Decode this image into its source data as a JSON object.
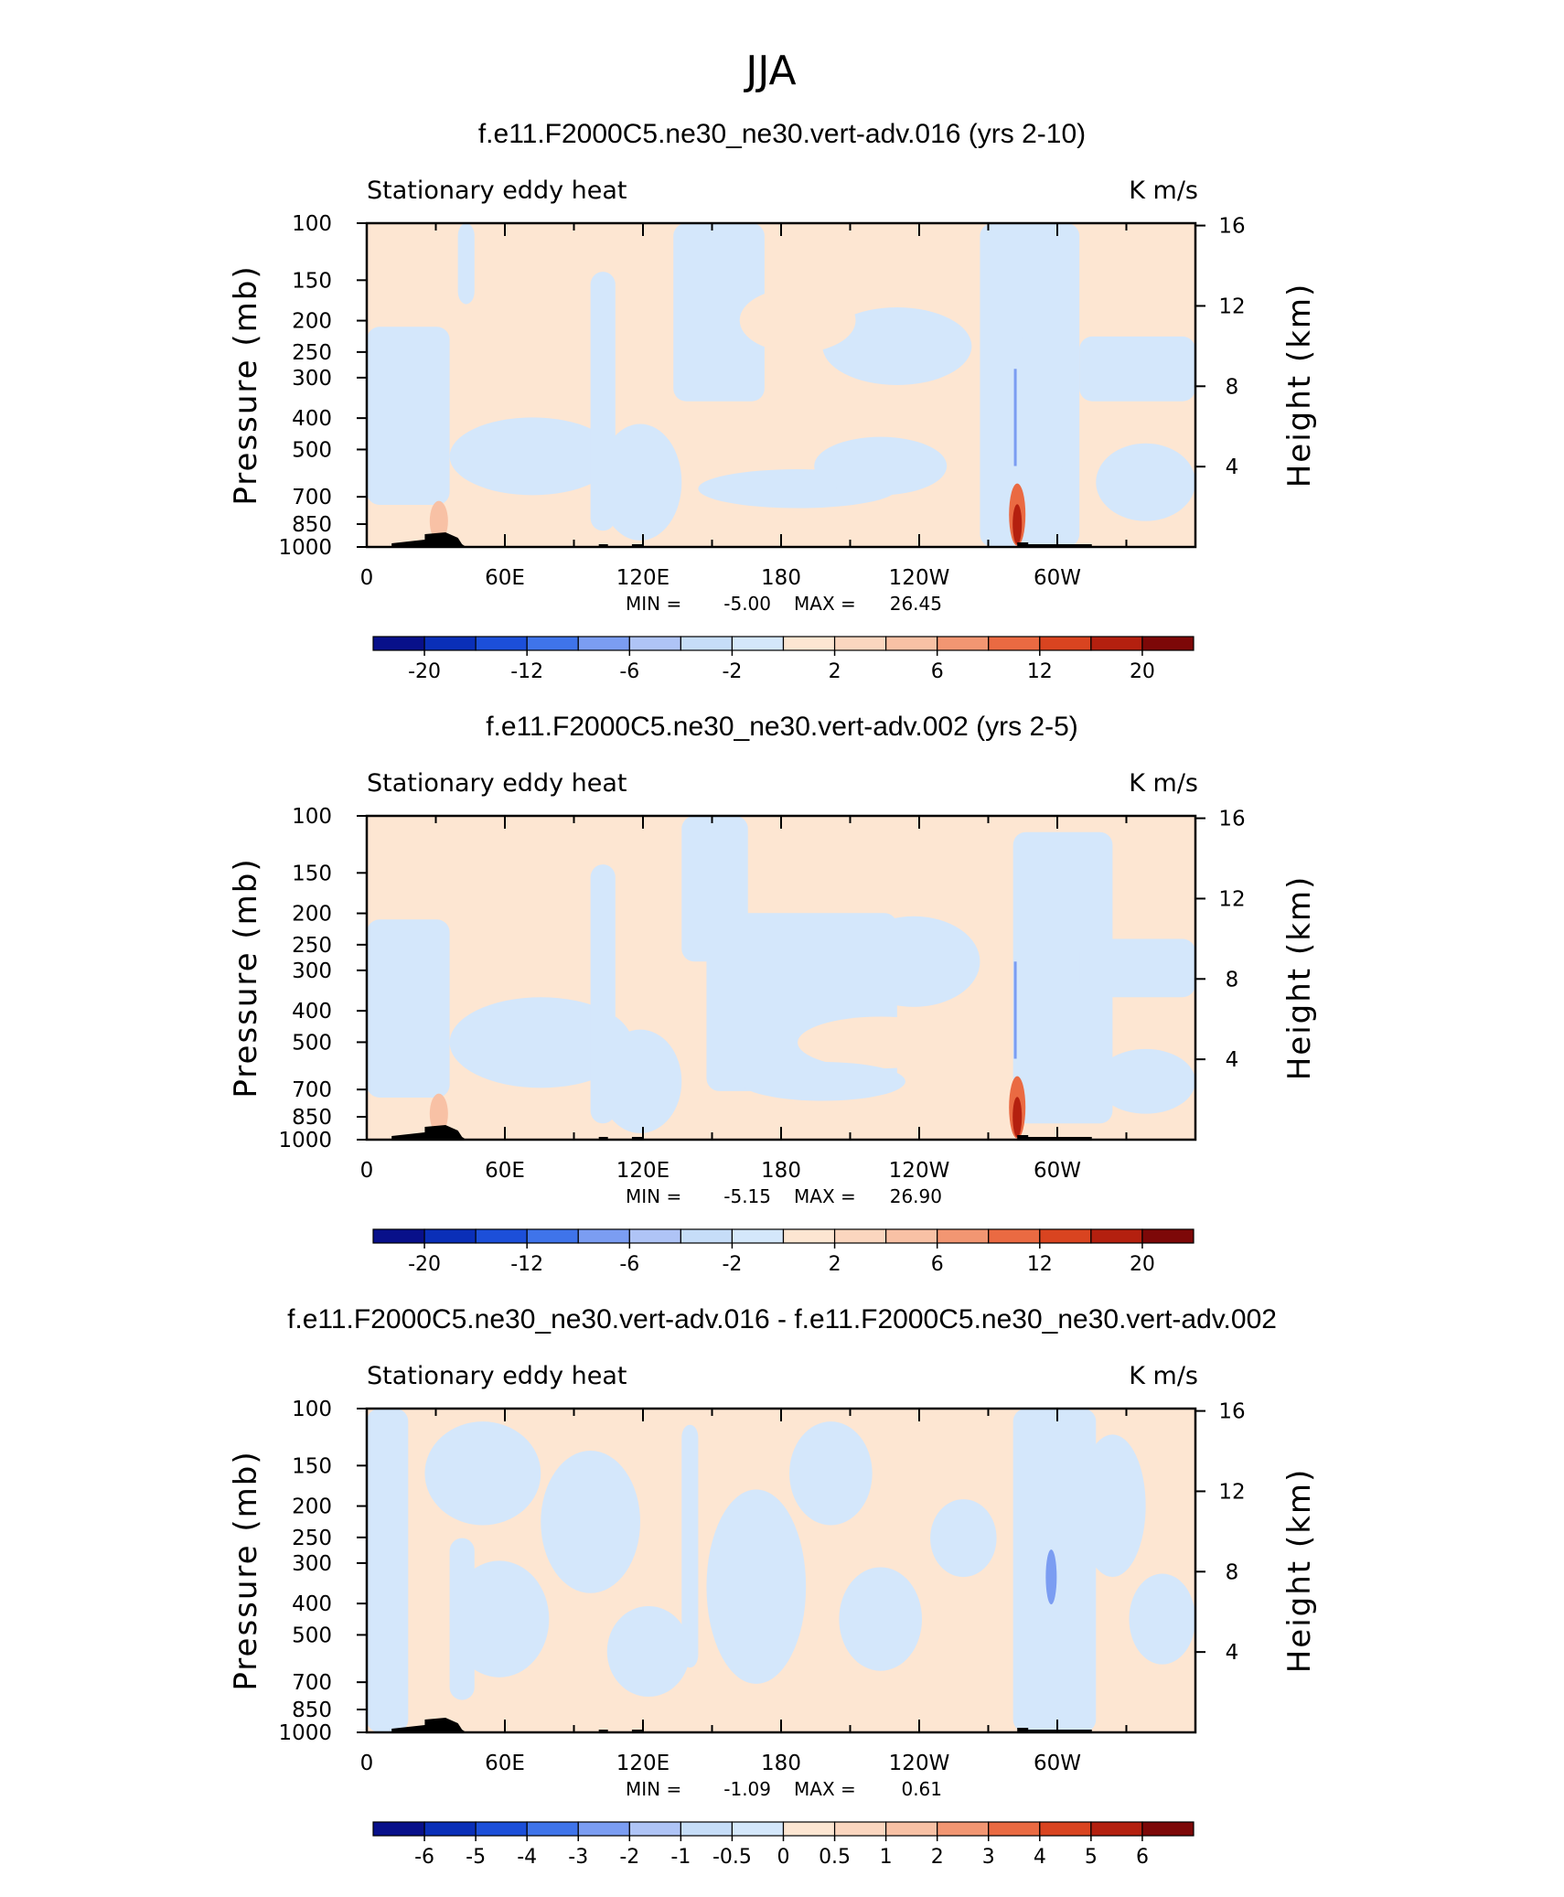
{
  "page_title": "JJA",
  "palette": {
    "neg": [
      "#08108a",
      "#0a2fb8",
      "#1c4fd9",
      "#3f74ea",
      "#7b9df2",
      "#afc4f6",
      "#d4e7fb"
    ],
    "pos": [
      "#fde6d2",
      "#f8c1a5",
      "#f29672",
      "#ea6a42",
      "#d94420",
      "#b4200f",
      "#7d0808"
    ],
    "topo": "#000000",
    "frame": "#000000"
  },
  "chart_data": [
    {
      "type": "heatmap",
      "title": "f.e11.F2000C5.ne30_ne30.vert-adv.016 (yrs 2-10)",
      "subtitle_left": "Stationary eddy heat",
      "subtitle_right": "K m/s",
      "ylabel": "Pressure (mb)",
      "ylabel_right": "Height (km)",
      "x_ticks": [
        "0",
        "60E",
        "120E",
        "180",
        "120W",
        "60W"
      ],
      "x_tick_values": [
        0,
        60,
        120,
        180,
        240,
        300
      ],
      "xlim": [
        0,
        360
      ],
      "y_ticks": [
        "100",
        "150",
        "200",
        "250",
        "300",
        "400",
        "500",
        "700",
        "850",
        "1000"
      ],
      "y_tick_values": [
        100,
        150,
        200,
        250,
        300,
        400,
        500,
        700,
        850,
        1000
      ],
      "ylim": [
        1000,
        100
      ],
      "y_scale": "log",
      "right_ticks": [
        "16",
        "12",
        "8",
        "4"
      ],
      "stats": {
        "min_label": "MIN =",
        "min_value": "-5.00",
        "max_label": "MAX =",
        "max_value": "26.45"
      },
      "colorbar_labels": [
        "-20",
        "-12",
        "-6",
        "-2",
        "2",
        "6",
        "12",
        "20"
      ],
      "colorbar_tick_positions": [
        1,
        3,
        5,
        7,
        9,
        11,
        13,
        15
      ]
    },
    {
      "type": "heatmap",
      "title": "f.e11.F2000C5.ne30_ne30.vert-adv.002 (yrs 2-5)",
      "subtitle_left": "Stationary eddy heat",
      "subtitle_right": "K m/s",
      "ylabel": "Pressure (mb)",
      "ylabel_right": "Height (km)",
      "x_ticks": [
        "0",
        "60E",
        "120E",
        "180",
        "120W",
        "60W"
      ],
      "x_tick_values": [
        0,
        60,
        120,
        180,
        240,
        300
      ],
      "xlim": [
        0,
        360
      ],
      "y_ticks": [
        "100",
        "150",
        "200",
        "250",
        "300",
        "400",
        "500",
        "700",
        "850",
        "1000"
      ],
      "y_tick_values": [
        100,
        150,
        200,
        250,
        300,
        400,
        500,
        700,
        850,
        1000
      ],
      "ylim": [
        1000,
        100
      ],
      "y_scale": "log",
      "right_ticks": [
        "16",
        "12",
        "8",
        "4"
      ],
      "stats": {
        "min_label": "MIN =",
        "min_value": "-5.15",
        "max_label": "MAX =",
        "max_value": "26.90"
      },
      "colorbar_labels": [
        "-20",
        "-12",
        "-6",
        "-2",
        "2",
        "6",
        "12",
        "20"
      ],
      "colorbar_tick_positions": [
        1,
        3,
        5,
        7,
        9,
        11,
        13,
        15
      ]
    },
    {
      "type": "heatmap",
      "title": "f.e11.F2000C5.ne30_ne30.vert-adv.016 - f.e11.F2000C5.ne30_ne30.vert-adv.002",
      "subtitle_left": "Stationary eddy heat",
      "subtitle_right": "K m/s",
      "ylabel": "Pressure (mb)",
      "ylabel_right": "Height (km)",
      "x_ticks": [
        "0",
        "60E",
        "120E",
        "180",
        "120W",
        "60W"
      ],
      "x_tick_values": [
        0,
        60,
        120,
        180,
        240,
        300
      ],
      "xlim": [
        0,
        360
      ],
      "y_ticks": [
        "100",
        "150",
        "200",
        "250",
        "300",
        "400",
        "500",
        "700",
        "850",
        "1000"
      ],
      "y_tick_values": [
        100,
        150,
        200,
        250,
        300,
        400,
        500,
        700,
        850,
        1000
      ],
      "ylim": [
        1000,
        100
      ],
      "y_scale": "log",
      "right_ticks": [
        "16",
        "12",
        "8",
        "4"
      ],
      "stats": {
        "min_label": "MIN =",
        "min_value": "-1.09",
        "max_label": "MAX =",
        "max_value": "0.61"
      },
      "colorbar_labels": [
        "-6",
        "-5",
        "-4",
        "-3",
        "-2",
        "-1",
        "-0.5",
        "0",
        "0.5",
        "1",
        "2",
        "3",
        "4",
        "5",
        "6"
      ],
      "colorbar_tick_positions": [
        1,
        2,
        3,
        4,
        5,
        6,
        7,
        8,
        9,
        10,
        11,
        12,
        13,
        14,
        15
      ]
    }
  ]
}
